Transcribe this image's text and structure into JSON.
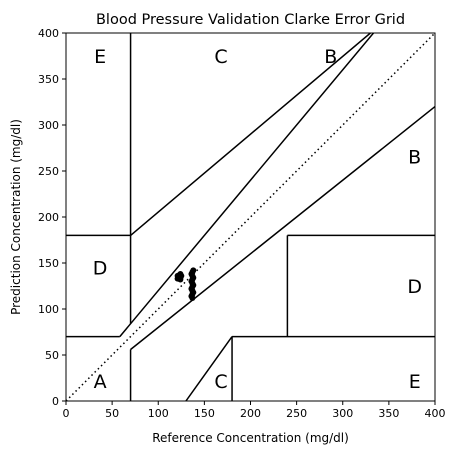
{
  "chart_data": {
    "type": "scatter",
    "title": "Blood Pressure Validation Clarke Error Grid",
    "xlabel": "Reference Concentration (mg/dl)",
    "ylabel": "Prediction Concentration (mg/dl)",
    "xlim": [
      0,
      400
    ],
    "ylim": [
      0,
      400
    ],
    "x_ticks": [
      0,
      50,
      100,
      150,
      200,
      250,
      300,
      350,
      400
    ],
    "y_ticks": [
      0,
      50,
      100,
      150,
      200,
      250,
      300,
      350,
      400
    ],
    "grid": false,
    "legend": false,
    "identity_line": {
      "style": "dotted",
      "from": [
        0,
        0
      ],
      "to": [
        400,
        400
      ]
    },
    "zone_lines": [
      [
        [
          0,
          70
        ],
        [
          58.33,
          70
        ]
      ],
      [
        [
          58.33,
          70
        ],
        [
          400,
          480
        ]
      ],
      [
        [
          70,
          84
        ],
        [
          70,
          400
        ]
      ],
      [
        [
          70,
          56
        ],
        [
          400,
          320
        ]
      ],
      [
        [
          70,
          0
        ],
        [
          70,
          56
        ]
      ],
      [
        [
          70,
          180
        ],
        [
          330,
          400
        ]
      ],
      [
        [
          0,
          180
        ],
        [
          70,
          180
        ]
      ],
      [
        [
          130,
          0
        ],
        [
          180,
          70
        ]
      ],
      [
        [
          180,
          0
        ],
        [
          180,
          70
        ]
      ],
      [
        [
          180,
          70
        ],
        [
          400,
          70
        ]
      ],
      [
        [
          240,
          70
        ],
        [
          240,
          180
        ]
      ],
      [
        [
          240,
          180
        ],
        [
          400,
          180
        ]
      ]
    ],
    "zone_labels": [
      {
        "text": "A",
        "x": 37,
        "y": 22
      },
      {
        "text": "E",
        "x": 37,
        "y": 375
      },
      {
        "text": "C",
        "x": 168,
        "y": 375
      },
      {
        "text": "B",
        "x": 287,
        "y": 375
      },
      {
        "text": "B",
        "x": 378,
        "y": 266
      },
      {
        "text": "D",
        "x": 37,
        "y": 145
      },
      {
        "text": "D",
        "x": 378,
        "y": 125
      },
      {
        "text": "C",
        "x": 168,
        "y": 22
      },
      {
        "text": "E",
        "x": 378,
        "y": 22
      }
    ],
    "series": [
      {
        "color": "#000000",
        "points": [
          [
            121,
            133
          ],
          [
            122,
            134
          ],
          [
            122,
            136
          ],
          [
            123,
            135
          ],
          [
            123,
            137
          ],
          [
            124,
            134
          ],
          [
            124,
            138
          ],
          [
            125,
            136
          ],
          [
            121,
            136
          ],
          [
            124,
            132
          ],
          [
            137,
            112
          ],
          [
            137,
            116
          ],
          [
            137,
            120
          ],
          [
            137,
            124
          ],
          [
            137,
            128
          ],
          [
            137,
            132
          ],
          [
            137,
            136
          ],
          [
            137,
            140
          ],
          [
            136,
            114
          ],
          [
            136,
            122
          ],
          [
            136,
            130
          ],
          [
            136,
            138
          ],
          [
            138,
            118
          ],
          [
            138,
            126
          ],
          [
            138,
            134
          ],
          [
            138,
            142
          ]
        ]
      }
    ]
  }
}
